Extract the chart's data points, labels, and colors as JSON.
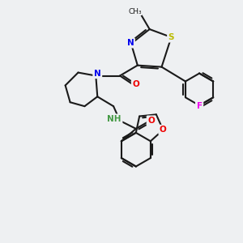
{
  "bg_color": "#eef0f2",
  "bond_color": "#1a1a1a",
  "atom_colors": {
    "N": "#0000ee",
    "O": "#ee0000",
    "S": "#bbbb00",
    "F": "#ee00ee",
    "NH": "#449944",
    "C": "#1a1a1a"
  },
  "figsize": [
    3.0,
    3.0
  ],
  "dpi": 100
}
